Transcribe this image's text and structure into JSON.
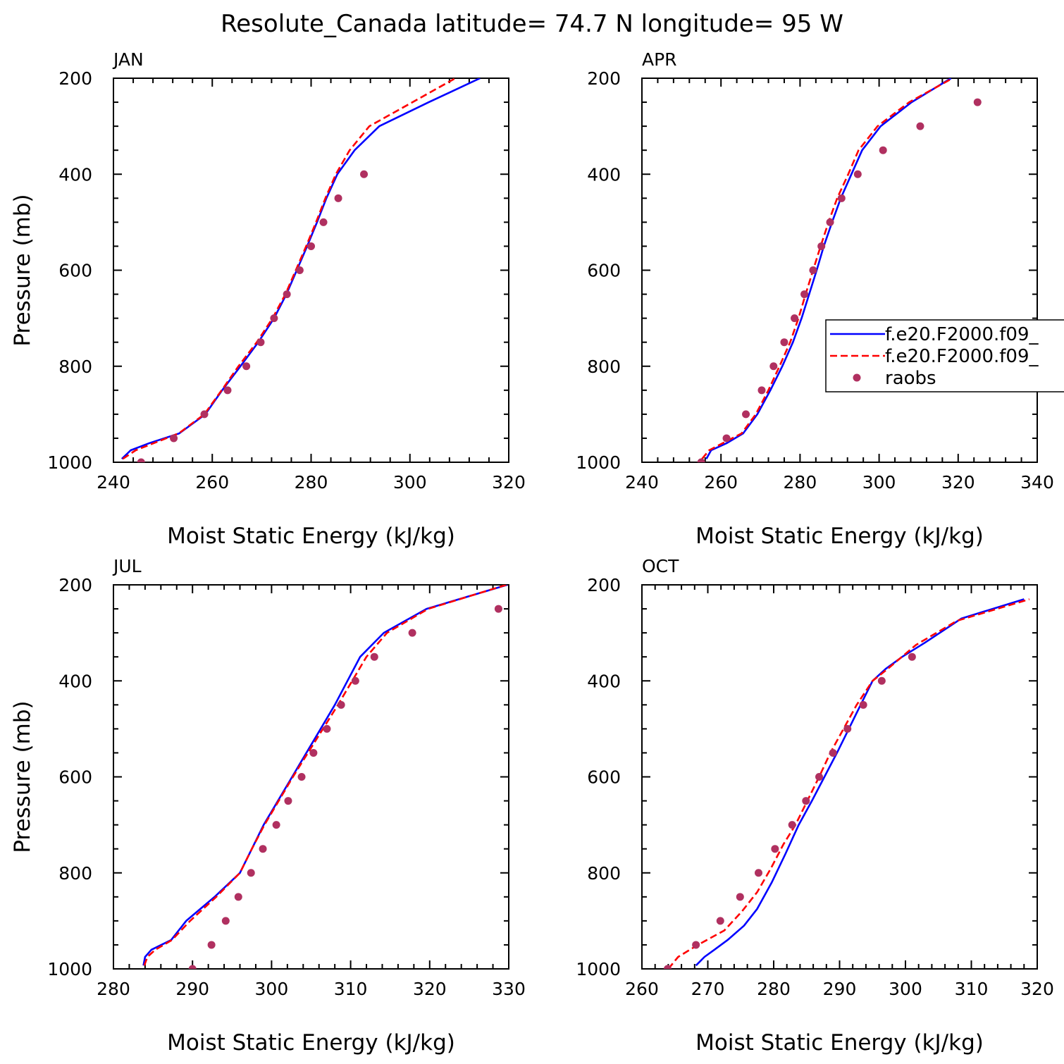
{
  "title": "Resolute_Canada  latitude= 74.7 N longitude= 95 W",
  "colors": {
    "model1": "#0000ff",
    "model2": "#ff0000",
    "raobs": "#b03060",
    "axis": "#000000"
  },
  "legend": {
    "entries": [
      {
        "label": "f.e20.F2000.f09_",
        "style": "solid",
        "color": "#0000ff"
      },
      {
        "label": "f.e20.F2000.f09_",
        "style": "dashed",
        "color": "#ff0000"
      },
      {
        "label": "raobs",
        "style": "marker",
        "color": "#b03060"
      }
    ],
    "placement": "inside APR panel, right edge, clipped"
  },
  "chart_data": [
    {
      "type": "line",
      "panel": "JAN",
      "xlabel": "Moist Static Energy (kJ/kg)",
      "ylabel": "Pressure (mb)",
      "xlim": [
        240,
        320
      ],
      "ylim": [
        1000,
        200
      ],
      "xticks": [
        240,
        260,
        280,
        300,
        320
      ],
      "yticks": [
        200,
        400,
        600,
        800,
        1000
      ],
      "y_reversed": true,
      "grid": false,
      "series": [
        {
          "name": "f.e20.F2000.f09_",
          "style": "solid",
          "color": "#0000ff",
          "x": [
            241.7,
            243.5,
            247.3,
            253.3,
            258.6,
            262.0,
            265.7,
            269.3,
            272.5,
            275.0,
            277.1,
            279.2,
            281.2,
            283.1,
            285.3,
            288.8,
            293.8,
            303.8,
            314.2
          ],
          "y": [
            993,
            975,
            960,
            940,
            900,
            850,
            800,
            750,
            700,
            650,
            600,
            550,
            500,
            450,
            400,
            350,
            300,
            250,
            200
          ]
        },
        {
          "name": "f.e20.F2000.f09_",
          "style": "dashed",
          "color": "#ff0000",
          "x": [
            241.9,
            244.5,
            248.2,
            253.2,
            258.4,
            261.9,
            265.3,
            269.0,
            272.2,
            274.8,
            276.9,
            279.0,
            281.0,
            282.9,
            285.0,
            287.8,
            291.8,
            300.5,
            309.2
          ],
          "y": [
            993,
            975,
            960,
            940,
            900,
            850,
            800,
            750,
            700,
            650,
            600,
            550,
            500,
            450,
            400,
            350,
            300,
            250,
            200
          ]
        }
      ],
      "points": {
        "name": "raobs",
        "x": [
          245.6,
          252.2,
          258.4,
          263.1,
          266.9,
          269.8,
          272.5,
          275.1,
          277.7,
          280.0,
          282.5,
          285.5,
          290.7
        ],
        "y": [
          1000,
          950,
          900,
          850,
          800,
          750,
          700,
          650,
          600,
          550,
          500,
          450,
          400
        ]
      }
    },
    {
      "type": "line",
      "panel": "APR",
      "xlabel": "Moist Static Energy (kJ/kg)",
      "ylabel": "",
      "xlim": [
        240,
        340
      ],
      "ylim": [
        1000,
        200
      ],
      "xticks": [
        240,
        260,
        280,
        300,
        320,
        340
      ],
      "yticks": [
        200,
        400,
        600,
        800,
        1000
      ],
      "y_reversed": true,
      "grid": false,
      "series": [
        {
          "name": "f.e20.F2000.f09_",
          "style": "solid",
          "color": "#0000ff",
          "x": [
            256.3,
            257.5,
            261.5,
            265.6,
            269.2,
            272.5,
            275.5,
            278.2,
            280.4,
            282.3,
            284.2,
            286.0,
            288.1,
            290.3,
            293.0,
            295.7,
            300.4,
            308.2,
            318.2
          ],
          "y": [
            993,
            975,
            960,
            940,
            900,
            850,
            800,
            750,
            700,
            650,
            600,
            550,
            500,
            450,
            400,
            350,
            300,
            250,
            200
          ]
        },
        {
          "name": "f.e20.F2000.f09_",
          "style": "dashed",
          "color": "#ff0000",
          "x": [
            255.2,
            257.0,
            260.5,
            265.2,
            268.8,
            272.0,
            274.8,
            277.5,
            279.6,
            281.4,
            283.3,
            285.2,
            287.2,
            289.4,
            292.2,
            294.8,
            299.6,
            307.6,
            318.6
          ],
          "y": [
            993,
            975,
            960,
            940,
            900,
            850,
            800,
            750,
            700,
            650,
            600,
            550,
            500,
            450,
            400,
            350,
            300,
            250,
            200
          ]
        }
      ],
      "points": {
        "name": "raobs",
        "x": [
          255.0,
          261.4,
          266.3,
          270.3,
          273.3,
          276.0,
          278.6,
          281.1,
          283.3,
          285.4,
          287.6,
          290.5,
          294.6,
          301.0,
          310.4,
          324.9
        ],
        "y": [
          1000,
          950,
          900,
          850,
          800,
          750,
          700,
          650,
          600,
          550,
          500,
          450,
          400,
          350,
          300,
          250
        ]
      }
    },
    {
      "type": "line",
      "panel": "JUL",
      "xlabel": "Moist Static Energy (kJ/kg)",
      "ylabel": "Pressure (mb)",
      "xlim": [
        280,
        330
      ],
      "ylim": [
        1000,
        200
      ],
      "xticks": [
        280,
        290,
        300,
        310,
        320,
        330
      ],
      "yticks": [
        200,
        400,
        600,
        800,
        1000
      ],
      "y_reversed": true,
      "grid": false,
      "series": [
        {
          "name": "f.e20.F2000.f09_",
          "style": "solid",
          "color": "#0000ff",
          "x": [
            283.8,
            284.0,
            284.8,
            287.3,
            289.2,
            292.8,
            296.0,
            297.5,
            299.0,
            300.8,
            302.6,
            304.4,
            306.2,
            308.0,
            309.6,
            311.2,
            314.2,
            319.6,
            329.8
          ],
          "y": [
            993,
            975,
            960,
            940,
            900,
            850,
            800,
            750,
            700,
            650,
            600,
            550,
            500,
            450,
            400,
            350,
            300,
            250,
            200
          ]
        },
        {
          "name": "f.e20.F2000.f09_",
          "style": "dashed",
          "color": "#ff0000",
          "x": [
            283.9,
            284.3,
            285.3,
            287.4,
            289.7,
            293.0,
            296.0,
            297.5,
            299.1,
            300.9,
            302.7,
            304.6,
            306.5,
            308.4,
            310.2,
            312.0,
            314.6,
            319.8,
            329.7
          ],
          "y": [
            993,
            975,
            960,
            940,
            900,
            850,
            800,
            750,
            700,
            650,
            600,
            550,
            500,
            450,
            400,
            350,
            300,
            250,
            200
          ]
        }
      ],
      "points": {
        "name": "raobs",
        "x": [
          290.0,
          292.4,
          294.2,
          295.8,
          297.4,
          298.9,
          300.6,
          302.1,
          303.8,
          305.3,
          307.0,
          308.8,
          310.6,
          313.0,
          317.8,
          328.7
        ],
        "y": [
          1000,
          950,
          900,
          850,
          800,
          750,
          700,
          650,
          600,
          550,
          500,
          450,
          400,
          350,
          300,
          250
        ]
      }
    },
    {
      "type": "line",
      "panel": "OCT",
      "xlabel": "Moist Static Energy (kJ/kg)",
      "ylabel": "",
      "xlim": [
        260,
        320
      ],
      "ylim": [
        1000,
        200
      ],
      "xticks": [
        260,
        270,
        280,
        290,
        300,
        310,
        320
      ],
      "yticks": [
        200,
        400,
        600,
        800,
        1000
      ],
      "y_reversed": true,
      "grid": false,
      "series": [
        {
          "name": "f.e20.F2000.f09_",
          "style": "solid",
          "color": "#0000ff",
          "x": [
            268.2,
            269.5,
            271.0,
            273.0,
            275.5,
            277.5,
            279.7,
            281.8,
            283.8,
            285.8,
            287.7,
            289.6,
            291.4,
            293.2,
            295.0,
            297.0,
            299.5,
            303.0,
            308.5,
            318.0
          ],
          "y": [
            993,
            975,
            960,
            940,
            910,
            875,
            820,
            760,
            700,
            650,
            600,
            550,
            500,
            450,
            400,
            375,
            350,
            320,
            270,
            230
          ]
        },
        {
          "name": "f.e20.F2000.f09_",
          "style": "dashed",
          "color": "#ff0000",
          "x": [
            264.0,
            265.5,
            268.5,
            272.5,
            275.2,
            277.5,
            279.6,
            281.5,
            283.3,
            285.1,
            286.9,
            288.6,
            290.6,
            292.6,
            295.0,
            297.3,
            301.6,
            307.8,
            318.8
          ],
          "y": [
            1000,
            975,
            950,
            920,
            880,
            840,
            790,
            740,
            700,
            650,
            600,
            550,
            500,
            450,
            400,
            375,
            325,
            275,
            230
          ]
        }
      ],
      "points": {
        "name": "raobs",
        "x": [
          263.9,
          268.2,
          271.9,
          274.9,
          277.7,
          280.2,
          282.8,
          284.9,
          286.9,
          289.0,
          291.2,
          293.6,
          296.4,
          301.0
        ],
        "y": [
          1000,
          950,
          900,
          850,
          800,
          750,
          700,
          650,
          600,
          550,
          500,
          450,
          400,
          350
        ]
      }
    }
  ]
}
